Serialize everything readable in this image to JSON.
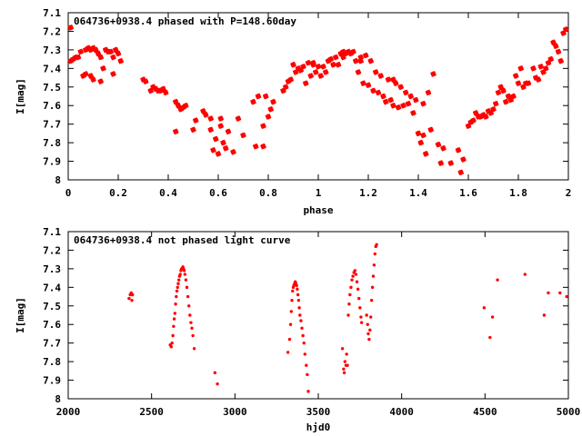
{
  "colors": {
    "points": "#ff0000",
    "axes": "#000000",
    "background": "#ffffff"
  },
  "chart_data": [
    {
      "type": "scatter",
      "title": "064736+0938.4 phased with P=148.60day",
      "xlabel": "phase",
      "ylabel": "I[mag]",
      "xlim": [
        0,
        2
      ],
      "ylim": [
        7.1,
        8
      ],
      "y_inverted": true,
      "grid": false,
      "x_ticks": [
        0,
        0.2,
        0.4,
        0.6,
        0.8,
        1,
        1.2,
        1.4,
        1.6,
        1.8,
        2
      ],
      "x_tick_labels": [
        "0",
        "0.2",
        "0.4",
        "0.6",
        "0.8",
        "1",
        "1.2",
        "1.4",
        "1.6",
        "1.8",
        "2"
      ],
      "y_ticks": [
        7.1,
        7.2,
        7.3,
        7.4,
        7.5,
        7.6,
        7.7,
        7.8,
        7.9,
        8
      ],
      "y_tick_labels": [
        "7.1",
        "7.2",
        "7.3",
        "7.4",
        "7.5",
        "7.6",
        "7.7",
        "7.8",
        "7.9",
        "8"
      ],
      "marker": "star",
      "points": [
        [
          0.01,
          7.18
        ],
        [
          0.01,
          7.36
        ],
        [
          0.02,
          7.35
        ],
        [
          0.03,
          7.34
        ],
        [
          0.04,
          7.34
        ],
        [
          0.05,
          7.31
        ],
        [
          0.06,
          7.44
        ],
        [
          0.07,
          7.43
        ],
        [
          0.07,
          7.3
        ],
        [
          0.08,
          7.29
        ],
        [
          0.09,
          7.3
        ],
        [
          0.09,
          7.44
        ],
        [
          0.1,
          7.29
        ],
        [
          0.1,
          7.46
        ],
        [
          0.11,
          7.3
        ],
        [
          0.12,
          7.32
        ],
        [
          0.13,
          7.47
        ],
        [
          0.13,
          7.34
        ],
        [
          0.14,
          7.4
        ],
        [
          0.15,
          7.3
        ],
        [
          0.16,
          7.31
        ],
        [
          0.17,
          7.31
        ],
        [
          0.18,
          7.43
        ],
        [
          0.18,
          7.34
        ],
        [
          0.19,
          7.3
        ],
        [
          0.2,
          7.32
        ],
        [
          0.21,
          7.36
        ],
        [
          0.3,
          7.46
        ],
        [
          0.31,
          7.47
        ],
        [
          0.33,
          7.52
        ],
        [
          0.34,
          7.5
        ],
        [
          0.35,
          7.51
        ],
        [
          0.36,
          7.52
        ],
        [
          0.37,
          7.52
        ],
        [
          0.38,
          7.51
        ],
        [
          0.39,
          7.53
        ],
        [
          0.43,
          7.58
        ],
        [
          0.43,
          7.74
        ],
        [
          0.44,
          7.6
        ],
        [
          0.45,
          7.62
        ],
        [
          0.46,
          7.61
        ],
        [
          0.47,
          7.6
        ],
        [
          0.5,
          7.73
        ],
        [
          0.51,
          7.68
        ],
        [
          0.54,
          7.63
        ],
        [
          0.55,
          7.65
        ],
        [
          0.57,
          7.73
        ],
        [
          0.57,
          7.67
        ],
        [
          0.58,
          7.84
        ],
        [
          0.59,
          7.78
        ],
        [
          0.6,
          7.86
        ],
        [
          0.61,
          7.71
        ],
        [
          0.61,
          7.67
        ],
        [
          0.62,
          7.8
        ],
        [
          0.63,
          7.83
        ],
        [
          0.64,
          7.74
        ],
        [
          0.66,
          7.85
        ],
        [
          0.68,
          7.67
        ],
        [
          0.7,
          7.76
        ],
        [
          0.74,
          7.58
        ],
        [
          0.75,
          7.82
        ],
        [
          0.76,
          7.55
        ],
        [
          0.78,
          7.71
        ],
        [
          0.78,
          7.82
        ],
        [
          0.79,
          7.55
        ],
        [
          0.8,
          7.66
        ],
        [
          0.81,
          7.62
        ],
        [
          0.82,
          7.58
        ],
        [
          0.86,
          7.52
        ],
        [
          0.87,
          7.5
        ],
        [
          0.88,
          7.47
        ],
        [
          0.89,
          7.46
        ],
        [
          0.9,
          7.38
        ],
        [
          0.91,
          7.42
        ],
        [
          0.92,
          7.4
        ],
        [
          0.93,
          7.41
        ],
        [
          0.94,
          7.39
        ],
        [
          0.95,
          7.48
        ],
        [
          0.96,
          7.37
        ],
        [
          0.97,
          7.44
        ],
        [
          0.98,
          7.37
        ],
        [
          0.98,
          7.38
        ],
        [
          0.99,
          7.42
        ],
        [
          1,
          7.39
        ],
        [
          1.01,
          7.44
        ],
        [
          1.02,
          7.39
        ],
        [
          1.03,
          7.42
        ],
        [
          1.04,
          7.36
        ],
        [
          1.05,
          7.35
        ],
        [
          1.06,
          7.38
        ],
        [
          1.07,
          7.34
        ],
        [
          1.08,
          7.38
        ],
        [
          1.09,
          7.32
        ],
        [
          1.1,
          7.34
        ],
        [
          1.1,
          7.31
        ],
        [
          1.11,
          7.32
        ],
        [
          1.12,
          7.31
        ],
        [
          1.13,
          7.32
        ],
        [
          1.14,
          7.31
        ],
        [
          1.15,
          7.36
        ],
        [
          1.16,
          7.42
        ],
        [
          1.17,
          7.36
        ],
        [
          1.17,
          7.34
        ],
        [
          1.18,
          7.48
        ],
        [
          1.19,
          7.33
        ],
        [
          1.2,
          7.49
        ],
        [
          1.21,
          7.36
        ],
        [
          1.22,
          7.52
        ],
        [
          1.23,
          7.42
        ],
        [
          1.24,
          7.53
        ],
        [
          1.25,
          7.44
        ],
        [
          1.26,
          7.55
        ],
        [
          1.27,
          7.58
        ],
        [
          1.28,
          7.46
        ],
        [
          1.29,
          7.57
        ],
        [
          1.3,
          7.6
        ],
        [
          1.3,
          7.46
        ],
        [
          1.31,
          7.48
        ],
        [
          1.32,
          7.61
        ],
        [
          1.33,
          7.5
        ],
        [
          1.34,
          7.6
        ],
        [
          1.35,
          7.53
        ],
        [
          1.36,
          7.59
        ],
        [
          1.37,
          7.55
        ],
        [
          1.38,
          7.64
        ],
        [
          1.39,
          7.57
        ],
        [
          1.4,
          7.75
        ],
        [
          1.41,
          7.8
        ],
        [
          1.42,
          7.59
        ],
        [
          1.42,
          7.76
        ],
        [
          1.43,
          7.86
        ],
        [
          1.44,
          7.53
        ],
        [
          1.45,
          7.73
        ],
        [
          1.46,
          7.43
        ],
        [
          1.48,
          7.81
        ],
        [
          1.49,
          7.91
        ],
        [
          1.5,
          7.83
        ],
        [
          1.53,
          7.91
        ],
        [
          1.56,
          7.84
        ],
        [
          1.57,
          7.96
        ],
        [
          1.58,
          7.89
        ],
        [
          1.6,
          7.71
        ],
        [
          1.61,
          7.69
        ],
        [
          1.62,
          7.68
        ],
        [
          1.63,
          7.64
        ],
        [
          1.64,
          7.66
        ],
        [
          1.65,
          7.66
        ],
        [
          1.66,
          7.65
        ],
        [
          1.67,
          7.66
        ],
        [
          1.68,
          7.63
        ],
        [
          1.69,
          7.64
        ],
        [
          1.7,
          7.62
        ],
        [
          1.71,
          7.59
        ],
        [
          1.72,
          7.53
        ],
        [
          1.73,
          7.5
        ],
        [
          1.74,
          7.52
        ],
        [
          1.75,
          7.58
        ],
        [
          1.76,
          7.55
        ],
        [
          1.77,
          7.57
        ],
        [
          1.78,
          7.55
        ],
        [
          1.79,
          7.44
        ],
        [
          1.8,
          7.48
        ],
        [
          1.81,
          7.4
        ],
        [
          1.82,
          7.5
        ],
        [
          1.83,
          7.48
        ],
        [
          1.84,
          7.48
        ],
        [
          1.86,
          7.4
        ],
        [
          1.87,
          7.45
        ],
        [
          1.88,
          7.46
        ],
        [
          1.89,
          7.39
        ],
        [
          1.9,
          7.42
        ],
        [
          1.91,
          7.4
        ],
        [
          1.92,
          7.37
        ],
        [
          1.93,
          7.35
        ],
        [
          1.94,
          7.26
        ],
        [
          1.95,
          7.28
        ],
        [
          1.96,
          7.31
        ],
        [
          1.97,
          7.36
        ],
        [
          1.98,
          7.21
        ],
        [
          1.99,
          7.19
        ]
      ]
    },
    {
      "type": "scatter",
      "title": "064736+0938.4 not phased light curve",
      "xlabel": "hjd0",
      "ylabel": "I[mag]",
      "xlim": [
        2000,
        5000
      ],
      "ylim": [
        7.1,
        8
      ],
      "y_inverted": true,
      "grid": false,
      "x_ticks": [
        2000,
        2500,
        3000,
        3500,
        4000,
        4500,
        5000
      ],
      "x_tick_labels": [
        "2000",
        "2500",
        "3000",
        "3500",
        "4000",
        "4500",
        "5000"
      ],
      "y_ticks": [
        7.1,
        7.2,
        7.3,
        7.4,
        7.5,
        7.6,
        7.7,
        7.8,
        7.9,
        8
      ],
      "y_tick_labels": [
        "7.1",
        "7.2",
        "7.3",
        "7.4",
        "7.5",
        "7.6",
        "7.7",
        "7.8",
        "7.9",
        "8"
      ],
      "marker": "dot",
      "points": [
        [
          2365,
          7.46
        ],
        [
          2372,
          7.44
        ],
        [
          2378,
          7.43
        ],
        [
          2382,
          7.47
        ],
        [
          2386,
          7.44
        ],
        [
          2612,
          7.71
        ],
        [
          2618,
          7.72
        ],
        [
          2623,
          7.7
        ],
        [
          2628,
          7.66
        ],
        [
          2632,
          7.61
        ],
        [
          2636,
          7.57
        ],
        [
          2640,
          7.54
        ],
        [
          2644,
          7.49
        ],
        [
          2648,
          7.45
        ],
        [
          2652,
          7.42
        ],
        [
          2656,
          7.4
        ],
        [
          2660,
          7.38
        ],
        [
          2664,
          7.36
        ],
        [
          2668,
          7.34
        ],
        [
          2672,
          7.33
        ],
        [
          2676,
          7.31
        ],
        [
          2680,
          7.3
        ],
        [
          2684,
          7.3
        ],
        [
          2688,
          7.29
        ],
        [
          2692,
          7.3
        ],
        [
          2696,
          7.31
        ],
        [
          2700,
          7.33
        ],
        [
          2706,
          7.36
        ],
        [
          2712,
          7.4
        ],
        [
          2718,
          7.45
        ],
        [
          2724,
          7.5
        ],
        [
          2730,
          7.55
        ],
        [
          2736,
          7.59
        ],
        [
          2742,
          7.62
        ],
        [
          2748,
          7.66
        ],
        [
          2756,
          7.73
        ],
        [
          2880,
          7.86
        ],
        [
          2895,
          7.92
        ],
        [
          3318,
          7.75
        ],
        [
          3328,
          7.68
        ],
        [
          3334,
          7.6
        ],
        [
          3338,
          7.53
        ],
        [
          3342,
          7.47
        ],
        [
          3346,
          7.42
        ],
        [
          3350,
          7.4
        ],
        [
          3354,
          7.39
        ],
        [
          3358,
          7.38
        ],
        [
          3362,
          7.37
        ],
        [
          3366,
          7.38
        ],
        [
          3370,
          7.39
        ],
        [
          3374,
          7.41
        ],
        [
          3378,
          7.44
        ],
        [
          3382,
          7.47
        ],
        [
          3386,
          7.51
        ],
        [
          3390,
          7.55
        ],
        [
          3396,
          7.58
        ],
        [
          3402,
          7.62
        ],
        [
          3408,
          7.66
        ],
        [
          3414,
          7.7
        ],
        [
          3420,
          7.76
        ],
        [
          3428,
          7.82
        ],
        [
          3434,
          7.87
        ],
        [
          3440,
          7.96
        ],
        [
          3645,
          7.73
        ],
        [
          3652,
          7.84
        ],
        [
          3656,
          7.86
        ],
        [
          3660,
          7.8
        ],
        [
          3666,
          7.82
        ],
        [
          3670,
          7.76
        ],
        [
          3675,
          7.82
        ],
        [
          3680,
          7.55
        ],
        [
          3685,
          7.49
        ],
        [
          3690,
          7.44
        ],
        [
          3696,
          7.4
        ],
        [
          3702,
          7.36
        ],
        [
          3708,
          7.34
        ],
        [
          3714,
          7.32
        ],
        [
          3720,
          7.31
        ],
        [
          3726,
          7.33
        ],
        [
          3732,
          7.37
        ],
        [
          3738,
          7.41
        ],
        [
          3744,
          7.46
        ],
        [
          3750,
          7.51
        ],
        [
          3756,
          7.56
        ],
        [
          3760,
          7.59
        ],
        [
          3790,
          7.55
        ],
        [
          3796,
          7.6
        ],
        [
          3800,
          7.65
        ],
        [
          3805,
          7.68
        ],
        [
          3810,
          7.63
        ],
        [
          3815,
          7.56
        ],
        [
          3820,
          7.47
        ],
        [
          3825,
          7.4
        ],
        [
          3830,
          7.34
        ],
        [
          3835,
          7.28
        ],
        [
          3840,
          7.22
        ],
        [
          3845,
          7.18
        ],
        [
          3850,
          7.17
        ],
        [
          4495,
          7.51
        ],
        [
          4530,
          7.67
        ],
        [
          4545,
          7.56
        ],
        [
          4575,
          7.36
        ],
        [
          4740,
          7.33
        ],
        [
          4855,
          7.55
        ],
        [
          4880,
          7.43
        ],
        [
          4950,
          7.43
        ],
        [
          4990,
          7.45
        ]
      ]
    }
  ]
}
